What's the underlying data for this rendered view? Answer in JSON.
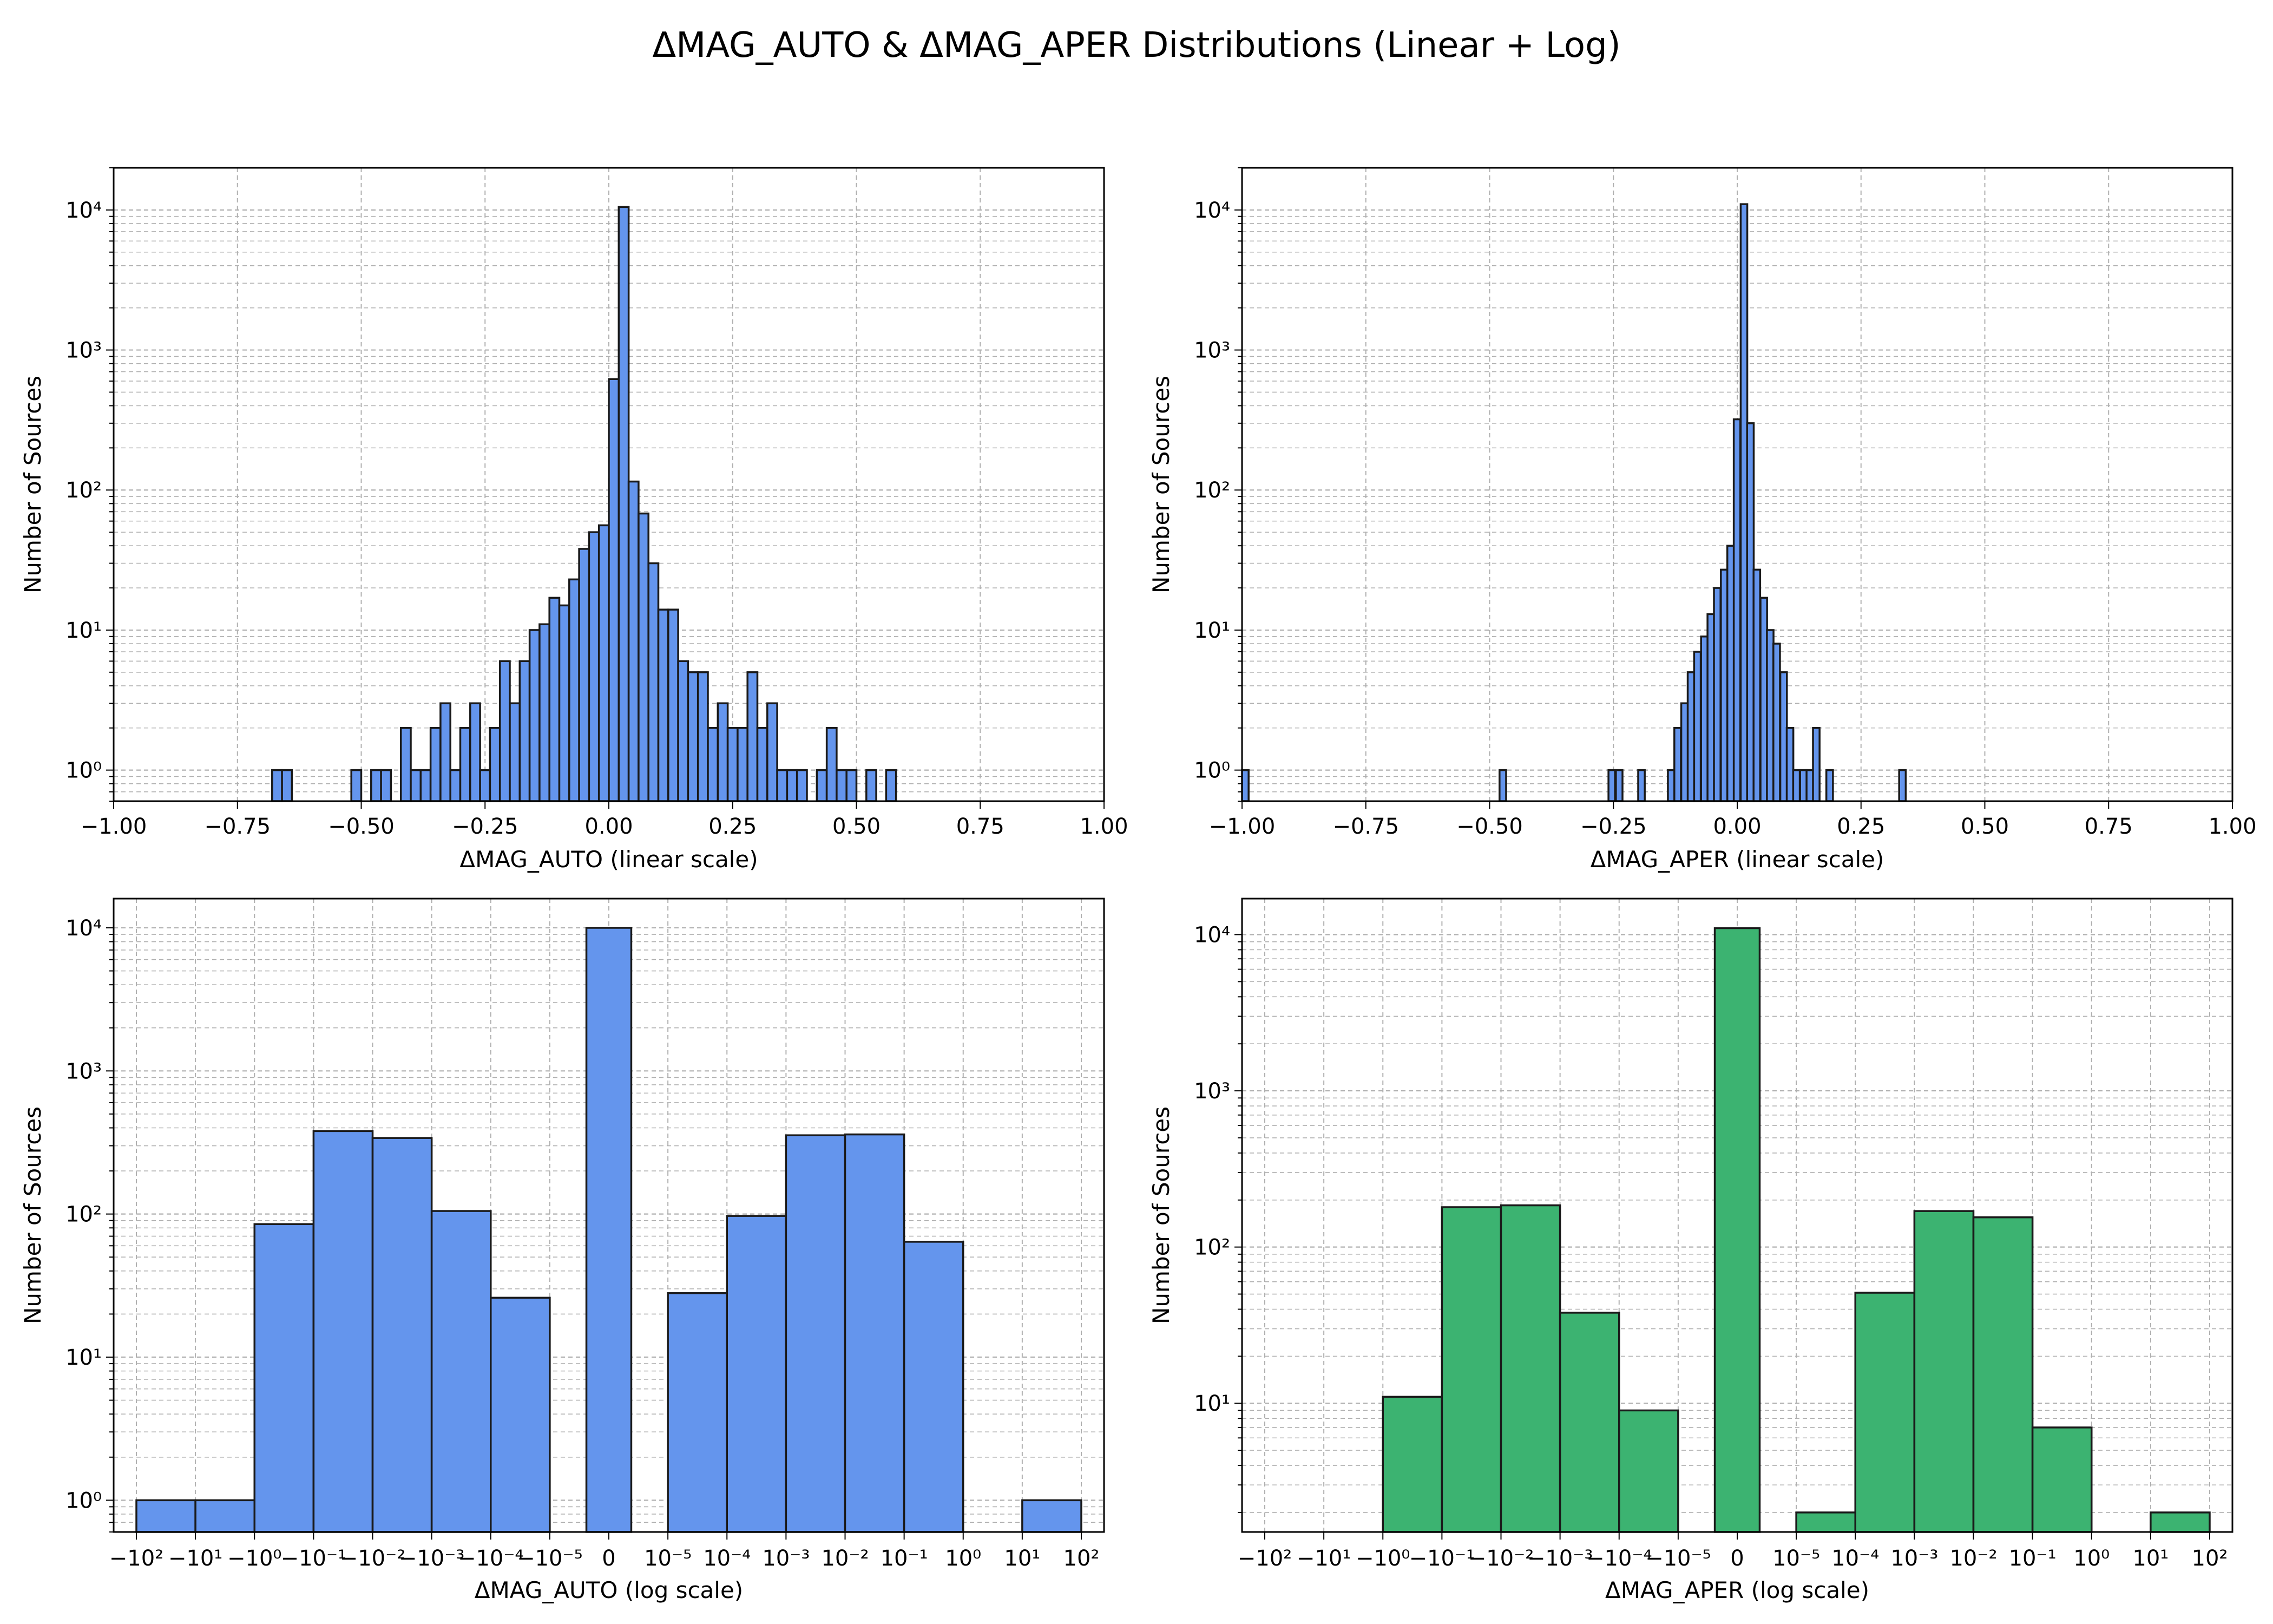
{
  "figure": {
    "title": "ΔMAG_AUTO & ΔMAG_APER Distributions (Linear + Log)"
  },
  "chart_data": [
    {
      "id": "auto-linear",
      "type": "bar",
      "xlabel": "ΔMAG_AUTO (linear scale)",
      "ylabel": "Number of Sources",
      "xscale": "linear",
      "yscale": "log",
      "xlim": [
        -1.0,
        1.0
      ],
      "ylim": [
        0.6,
        20000
      ],
      "xticks": [
        -1.0,
        -0.75,
        -0.5,
        -0.25,
        0.0,
        0.25,
        0.5,
        0.75,
        1.0
      ],
      "xtick_labels": [
        "−1.00",
        "−0.75",
        "−0.50",
        "−0.25",
        "0.00",
        "0.25",
        "0.50",
        "0.75",
        "1.00"
      ],
      "grid": true,
      "color": "#6495ED",
      "bin_width": 0.02,
      "bins": [
        [
          -0.68,
          1
        ],
        [
          -0.66,
          1
        ],
        [
          -0.52,
          1
        ],
        [
          -0.48,
          1
        ],
        [
          -0.46,
          1
        ],
        [
          -0.42,
          2
        ],
        [
          -0.4,
          1
        ],
        [
          -0.38,
          1
        ],
        [
          -0.36,
          2
        ],
        [
          -0.34,
          3
        ],
        [
          -0.32,
          1
        ],
        [
          -0.3,
          2
        ],
        [
          -0.28,
          3
        ],
        [
          -0.26,
          1
        ],
        [
          -0.24,
          2
        ],
        [
          -0.22,
          6
        ],
        [
          -0.2,
          3
        ],
        [
          -0.18,
          6
        ],
        [
          -0.16,
          10
        ],
        [
          -0.14,
          11
        ],
        [
          -0.12,
          17
        ],
        [
          -0.1,
          15
        ],
        [
          -0.08,
          23
        ],
        [
          -0.06,
          38
        ],
        [
          -0.04,
          50
        ],
        [
          -0.02,
          56
        ],
        [
          0.0,
          120
        ],
        [
          0.0,
          620
        ],
        [
          0.02,
          10500
        ],
        [
          0.04,
          115
        ],
        [
          0.06,
          68
        ],
        [
          0.08,
          30
        ],
        [
          0.1,
          14
        ],
        [
          0.12,
          14
        ],
        [
          0.14,
          6
        ],
        [
          0.16,
          5
        ],
        [
          0.18,
          5
        ],
        [
          0.2,
          2
        ],
        [
          0.22,
          3
        ],
        [
          0.24,
          2
        ],
        [
          0.26,
          2
        ],
        [
          0.28,
          5
        ],
        [
          0.3,
          2
        ],
        [
          0.32,
          3
        ],
        [
          0.34,
          1
        ],
        [
          0.36,
          1
        ],
        [
          0.38,
          1
        ],
        [
          0.42,
          1
        ],
        [
          0.44,
          2
        ],
        [
          0.46,
          1
        ],
        [
          0.48,
          1
        ],
        [
          0.52,
          1
        ],
        [
          0.56,
          1
        ]
      ]
    },
    {
      "id": "aper-linear",
      "type": "bar",
      "xlabel": "ΔMAG_APER (linear scale)",
      "ylabel": "Number of Sources",
      "xscale": "linear",
      "yscale": "log",
      "xlim": [
        -1.0,
        1.0
      ],
      "ylim": [
        0.6,
        20000
      ],
      "xticks": [
        -1.0,
        -0.75,
        -0.5,
        -0.25,
        0.0,
        0.25,
        0.5,
        0.75,
        1.0
      ],
      "xtick_labels": [
        "−1.00",
        "−0.75",
        "−0.50",
        "−0.25",
        "0.00",
        "0.25",
        "0.50",
        "0.75",
        "1.00"
      ],
      "grid": true,
      "color": "#6495ED",
      "bin_width": 0.0133,
      "bins": [
        [
          -1.0,
          1
        ],
        [
          -0.48,
          1
        ],
        [
          -0.26,
          1
        ],
        [
          -0.245,
          1
        ],
        [
          -0.2,
          1
        ],
        [
          -0.14,
          1
        ],
        [
          -0.127,
          2
        ],
        [
          -0.113,
          3
        ],
        [
          -0.1,
          5
        ],
        [
          -0.087,
          7
        ],
        [
          -0.073,
          9
        ],
        [
          -0.06,
          13
        ],
        [
          -0.047,
          20
        ],
        [
          -0.033,
          27
        ],
        [
          -0.02,
          40
        ],
        [
          -0.007,
          320
        ],
        [
          0.007,
          11000
        ],
        [
          0.02,
          300
        ],
        [
          0.033,
          27
        ],
        [
          0.047,
          17
        ],
        [
          0.06,
          10
        ],
        [
          0.073,
          8
        ],
        [
          0.087,
          5
        ],
        [
          0.1,
          2
        ],
        [
          0.113,
          1
        ],
        [
          0.127,
          1
        ],
        [
          0.14,
          1
        ],
        [
          0.153,
          2
        ],
        [
          0.18,
          1
        ],
        [
          0.327,
          1
        ]
      ]
    },
    {
      "id": "auto-log",
      "type": "bar",
      "xlabel": "ΔMAG_AUTO (log scale)",
      "ylabel": "Number of Sources",
      "xscale": "symlog",
      "yscale": "log",
      "ylim": [
        0.6,
        16000
      ],
      "grid": true,
      "color": "#6495ED",
      "xtick_labels": [
        "−10²",
        "−10¹",
        "−10⁰",
        "−10⁻¹",
        "−10⁻²",
        "−10⁻³",
        "−10⁻⁴",
        "−10⁻⁵",
        "0",
        "10⁻⁵",
        "10⁻⁴",
        "10⁻³",
        "10⁻²",
        "10⁻¹",
        "10⁰",
        "10¹",
        "10²"
      ],
      "bins": [
        {
          "from": "−10²",
          "to": "−10¹",
          "count": 1
        },
        {
          "from": "−10¹",
          "to": "−10⁰",
          "count": 1
        },
        {
          "from": "−10⁰",
          "to": "−10⁻¹",
          "count": 85
        },
        {
          "from": "−10⁻¹",
          "to": "−10⁻²",
          "count": 380
        },
        {
          "from": "−10⁻²",
          "to": "−10⁻³",
          "count": 340
        },
        {
          "from": "−10⁻³",
          "to": "−10⁻⁴",
          "count": 105
        },
        {
          "from": "−10⁻⁴",
          "to": "−10⁻⁵",
          "count": 26
        },
        {
          "from": "−10⁻⁵",
          "to": "10⁻⁵",
          "count": 10000
        },
        {
          "from": "10⁻⁵",
          "to": "10⁻⁴",
          "count": 28
        },
        {
          "from": "10⁻⁴",
          "to": "10⁻³",
          "count": 97
        },
        {
          "from": "10⁻³",
          "to": "10⁻²",
          "count": 355
        },
        {
          "from": "10⁻²",
          "to": "10⁻¹",
          "count": 360
        },
        {
          "from": "10⁻¹",
          "to": "10⁰",
          "count": 64
        },
        {
          "from": "10¹",
          "to": "10²",
          "count": 1
        }
      ]
    },
    {
      "id": "aper-log",
      "type": "bar",
      "xlabel": "ΔMAG_APER (log scale)",
      "ylabel": "Number of Sources",
      "xscale": "symlog",
      "yscale": "log",
      "ylim": [
        1.5,
        17000
      ],
      "grid": true,
      "color": "#3CB371",
      "xtick_labels": [
        "−10²",
        "−10¹",
        "−10⁰",
        "−10⁻¹",
        "−10⁻²",
        "−10⁻³",
        "−10⁻⁴",
        "−10⁻⁵",
        "0",
        "10⁻⁵",
        "10⁻⁴",
        "10⁻³",
        "10⁻²",
        "10⁻¹",
        "10⁰",
        "10¹",
        "10²"
      ],
      "bins": [
        {
          "from": "−10⁰",
          "to": "−10⁻¹",
          "count": 11
        },
        {
          "from": "−10⁻¹",
          "to": "−10⁻²",
          "count": 180
        },
        {
          "from": "−10⁻²",
          "to": "−10⁻³",
          "count": 185
        },
        {
          "from": "−10⁻³",
          "to": "−10⁻⁴",
          "count": 38
        },
        {
          "from": "−10⁻⁴",
          "to": "−10⁻⁵",
          "count": 9
        },
        {
          "from": "−10⁻⁵",
          "to": "10⁻⁵",
          "count": 11000
        },
        {
          "from": "10⁻⁵",
          "to": "10⁻⁴",
          "count": 2
        },
        {
          "from": "10⁻⁴",
          "to": "10⁻³",
          "count": 51
        },
        {
          "from": "10⁻³",
          "to": "10⁻²",
          "count": 170
        },
        {
          "from": "10⁻²",
          "to": "10⁻¹",
          "count": 155
        },
        {
          "from": "10⁻¹",
          "to": "10⁰",
          "count": 7
        },
        {
          "from": "10¹",
          "to": "10²",
          "count": 2
        }
      ]
    }
  ]
}
